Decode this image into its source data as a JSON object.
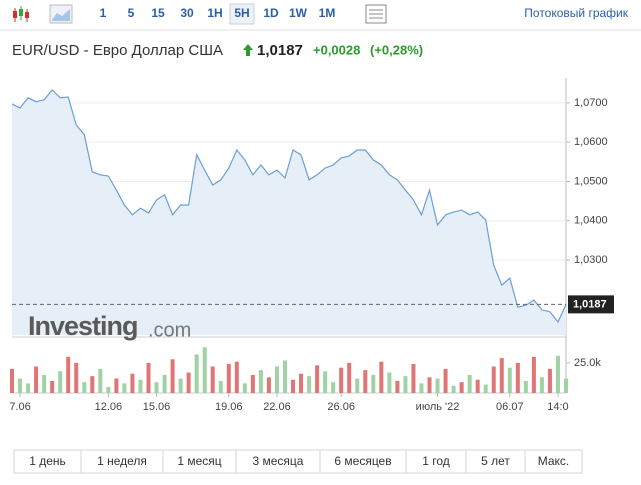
{
  "toolbar": {
    "intervals": [
      "1",
      "5",
      "15",
      "30",
      "1H",
      "5H",
      "1D",
      "1W",
      "1M"
    ],
    "selected": "5H",
    "stream_link": "Потоковый график"
  },
  "header": {
    "title": "EUR/USD - Евро Доллар США",
    "price": "1,0187",
    "change": "+0,0028",
    "change_pct": "(+0,28%)"
  },
  "watermark": {
    "brand": "Investing",
    "domain": ".com"
  },
  "chart_data": {
    "type": "line",
    "categories": [
      null,
      "7.06",
      null,
      null,
      null,
      null,
      null,
      null,
      null,
      null,
      null,
      null,
      "12.06",
      null,
      null,
      null,
      null,
      null,
      "15.06",
      null,
      null,
      null,
      null,
      null,
      null,
      null,
      null,
      "19.06",
      null,
      null,
      null,
      null,
      null,
      "22.06",
      null,
      null,
      null,
      null,
      null,
      null,
      null,
      "26.06",
      null,
      null,
      null,
      null,
      null,
      null,
      null,
      null,
      null,
      null,
      null,
      "июль '22",
      null,
      null,
      null,
      null,
      null,
      null,
      null,
      null,
      "06.07",
      null,
      null,
      null,
      null,
      null,
      "14:0",
      null
    ],
    "series": [
      {
        "color": "#6a9fd4",
        "fill": "#e6eef8",
        "values": [
          1.0697,
          1.0687,
          1.0713,
          1.0703,
          1.0708,
          1.0733,
          1.0713,
          1.0715,
          1.0644,
          1.0619,
          1.0524,
          1.0517,
          1.0514,
          1.0478,
          1.044,
          1.0415,
          1.0432,
          1.042,
          1.0453,
          1.0466,
          1.0415,
          1.044,
          1.044,
          1.0568,
          1.0529,
          1.0491,
          1.0504,
          1.0534,
          1.058,
          1.0555,
          1.0517,
          1.0542,
          1.0517,
          1.0529,
          1.0509,
          1.058,
          1.0568,
          1.0504,
          1.0517,
          1.0534,
          1.0542,
          1.056,
          1.0565,
          1.058,
          1.058,
          1.0555,
          1.0542,
          1.0517,
          1.0504,
          1.0478,
          1.0453,
          1.0415,
          1.0478,
          1.0389,
          1.0415,
          1.0422,
          1.0427,
          1.0415,
          1.0422,
          1.0402,
          1.0287,
          1.0236,
          1.0254,
          1.018,
          1.0185,
          1.0198,
          1.0173,
          1.0168,
          1.0142,
          1.0187
        ]
      }
    ],
    "ylim": [
      1.0109,
      1.0738
    ],
    "yticks": [
      {
        "value": 1.03,
        "label": "1,0300"
      },
      {
        "value": 1.04,
        "label": "1,0400"
      },
      {
        "value": 1.05,
        "label": "1,0500"
      },
      {
        "value": 1.06,
        "label": "1,0600"
      },
      {
        "value": 1.07,
        "label": "1,0700"
      }
    ],
    "last_value": {
      "value": 1.0187,
      "label": "1,0187"
    },
    "volume": {
      "ylim": [
        0,
        44000
      ],
      "yticks": [
        {
          "value": 25000,
          "label": "25.0k"
        }
      ],
      "values": [
        20000,
        12000,
        8000,
        22000,
        15000,
        10000,
        18000,
        30000,
        25000,
        9000,
        14000,
        20000,
        5000,
        12000,
        8000,
        16000,
        11000,
        25000,
        9000,
        15000,
        28000,
        12000,
        17000,
        32000,
        38000,
        22000,
        10000,
        24000,
        26000,
        8000,
        15000,
        19000,
        13000,
        22000,
        27000,
        11000,
        16000,
        14000,
        23000,
        18000,
        9000,
        21000,
        25000,
        12000,
        19000,
        15000,
        26000,
        17000,
        10000,
        14000,
        24000,
        8000,
        13000,
        12000,
        20000,
        6000,
        9000,
        15000,
        11000,
        7000,
        22000,
        29000,
        21000,
        25000,
        10000,
        30000,
        13000,
        20000,
        31000,
        12000
      ],
      "colors": [
        "#e07575",
        "#9fd3a6",
        "#9fd3a6",
        "#e07575",
        "#9fd3a6",
        "#e07575",
        "#9fd3a6",
        "#e07575",
        "#e07575",
        "#9fd3a6",
        "#e07575",
        "#9fd3a6",
        "#9fd3a6",
        "#e07575",
        "#9fd3a6",
        "#e07575",
        "#9fd3a6",
        "#e07575",
        "#9fd3a6",
        "#9fd3a6",
        "#e07575",
        "#9fd3a6",
        "#e07575",
        "#9fd3a6",
        "#9fd3a6",
        "#e07575",
        "#9fd3a6",
        "#e07575",
        "#e07575",
        "#9fd3a6",
        "#e07575",
        "#9fd3a6",
        "#e07575",
        "#9fd3a6",
        "#9fd3a6",
        "#e07575",
        "#e07575",
        "#9fd3a6",
        "#e07575",
        "#9fd3a6",
        "#9fd3a6",
        "#e07575",
        "#e07575",
        "#9fd3a6",
        "#e07575",
        "#9fd3a6",
        "#e07575",
        "#9fd3a6",
        "#e07575",
        "#9fd3a6",
        "#e07575",
        "#9fd3a6",
        "#e07575",
        "#9fd3a6",
        "#e07575",
        "#9fd3a6",
        "#e07575",
        "#9fd3a6",
        "#e07575",
        "#9fd3a6",
        "#e07575",
        "#e07575",
        "#9fd3a6",
        "#e07575",
        "#9fd3a6",
        "#e07575",
        "#9fd3a6",
        "#e07575",
        "#9fd3a6",
        "#9fd3a6"
      ]
    },
    "grid": true
  },
  "periods": [
    "1 день",
    "1 неделя",
    "1 месяц",
    "3 месяца",
    "6 месяцев",
    "1 год",
    "5 лет",
    "Макс."
  ]
}
